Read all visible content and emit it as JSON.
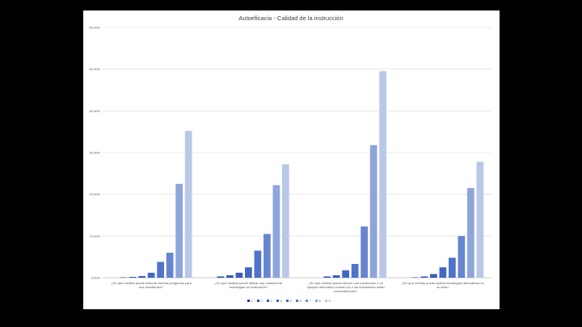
{
  "chart_data": {
    "type": "bar",
    "title": "Autoeficacia - Calidad de la instrucción",
    "xlabel": "",
    "ylabel": "",
    "ylim": [
      0,
      60
    ],
    "yticks": [
      "0,00%",
      "10,00%",
      "20,00%",
      "30,00%",
      "40,00%",
      "50,00%",
      "60,00%"
    ],
    "grid": true,
    "legend_position": "bottom",
    "categories": [
      [
        "¿En qué medida puede elaborar buenas preguntas para",
        "sus estudiantes?"
      ],
      [
        "¿En qué medida puede utilizar una variedad de",
        "estrategias de evaluación?"
      ],
      [
        "¿En qué medida puede ofrecer una explicación o un",
        "ejemplo alternativo cuando los o las estudiantes están",
        "confundidos/as?"
      ],
      [
        "¿En qué medida puede aplicar estrategias alternativas en",
        "su aula?"
      ]
    ],
    "series": [
      {
        "name": "1",
        "color": "#1f3d8f",
        "values": [
          0.0,
          0.0,
          0.0,
          0.0
        ]
      },
      {
        "name": "2",
        "color": "#2a4ea6",
        "values": [
          0.1,
          0.3,
          0.0,
          0.1
        ]
      },
      {
        "name": "3",
        "color": "#3258b2",
        "values": [
          0.2,
          0.6,
          0.3,
          0.3
        ]
      },
      {
        "name": "4",
        "color": "#3a5fbb",
        "values": [
          0.4,
          1.2,
          0.6,
          0.9
        ]
      },
      {
        "name": "5",
        "color": "#4468c2",
        "values": [
          1.2,
          2.5,
          1.8,
          2.5
        ]
      },
      {
        "name": "6",
        "color": "#4f74c8",
        "values": [
          3.8,
          6.5,
          3.3,
          4.8
        ]
      },
      {
        "name": "7",
        "color": "#6785cf",
        "values": [
          6.0,
          10.5,
          12.3,
          10.0
        ]
      },
      {
        "name": "8",
        "color": "#8ea5da",
        "values": [
          22.5,
          22.2,
          31.8,
          21.5
        ]
      },
      {
        "name": "9",
        "color": "#b9c7e8",
        "values": [
          35.2,
          27.2,
          49.5,
          27.8
        ]
      }
    ]
  }
}
